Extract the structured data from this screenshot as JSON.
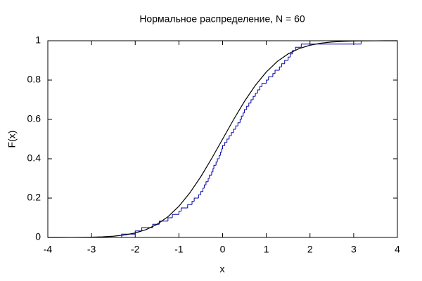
{
  "chart_data": {
    "type": "line",
    "title": "Нормальное распределение, N = 60",
    "xlabel": "x",
    "ylabel": "F(x)",
    "xlim": [
      -4,
      4
    ],
    "xticks": [
      -4,
      -3,
      -2,
      -1,
      0,
      1,
      2,
      3,
      4
    ],
    "ylim": [
      0,
      1
    ],
    "yticks": [
      0,
      0.2,
      0.4,
      0.6,
      0.8,
      1
    ],
    "grid": false,
    "series": [
      {
        "color": "#0000aa",
        "step": true,
        "x": [
          -2.31,
          -2.0,
          -1.85,
          -1.6,
          -1.45,
          -1.25,
          -1.15,
          -1.0,
          -0.95,
          -0.8,
          -0.7,
          -0.65,
          -0.55,
          -0.5,
          -0.45,
          -0.42,
          -0.38,
          -0.33,
          -0.3,
          -0.25,
          -0.22,
          -0.2,
          -0.15,
          -0.12,
          -0.08,
          -0.05,
          -0.02,
          0.0,
          0.05,
          0.1,
          0.15,
          0.2,
          0.25,
          0.3,
          0.35,
          0.4,
          0.43,
          0.47,
          0.5,
          0.55,
          0.6,
          0.65,
          0.7,
          0.75,
          0.8,
          0.85,
          0.9,
          1.0,
          1.05,
          1.15,
          1.2,
          1.3,
          1.35,
          1.42,
          1.5,
          1.55,
          1.6,
          1.67,
          1.8,
          3.17
        ],
        "values": [
          0.017,
          0.033,
          0.05,
          0.067,
          0.083,
          0.1,
          0.117,
          0.133,
          0.15,
          0.167,
          0.183,
          0.2,
          0.217,
          0.233,
          0.25,
          0.267,
          0.283,
          0.3,
          0.317,
          0.333,
          0.35,
          0.367,
          0.383,
          0.4,
          0.417,
          0.433,
          0.45,
          0.467,
          0.483,
          0.5,
          0.517,
          0.533,
          0.55,
          0.567,
          0.583,
          0.6,
          0.617,
          0.633,
          0.65,
          0.667,
          0.683,
          0.7,
          0.717,
          0.733,
          0.75,
          0.767,
          0.783,
          0.8,
          0.817,
          0.833,
          0.85,
          0.867,
          0.883,
          0.9,
          0.917,
          0.933,
          0.95,
          0.967,
          0.983,
          1
        ]
      },
      {
        "color": "#000000",
        "step": false,
        "x": [
          -4,
          -3.75,
          -3.5,
          -3.25,
          -3,
          -2.75,
          -2.5,
          -2.25,
          -2,
          -1.75,
          -1.5,
          -1.25,
          -1,
          -0.75,
          -0.5,
          -0.25,
          0,
          0.25,
          0.5,
          0.75,
          1,
          1.25,
          1.5,
          1.75,
          2,
          2.25,
          2.5,
          2.75,
          3,
          3.25,
          3.5,
          3.75,
          4
        ],
        "values": [
          0,
          0.0001,
          0.0002,
          0.0006,
          0.0013,
          0.003,
          0.0062,
          0.0122,
          0.0228,
          0.0401,
          0.0668,
          0.1056,
          0.1587,
          0.2266,
          0.3085,
          0.4013,
          0.5,
          0.5987,
          0.6915,
          0.7734,
          0.8413,
          0.8944,
          0.9332,
          0.9599,
          0.9772,
          0.9878,
          0.9938,
          0.997,
          0.9987,
          0.9994,
          0.9998,
          0.9999,
          1
        ]
      }
    ]
  }
}
